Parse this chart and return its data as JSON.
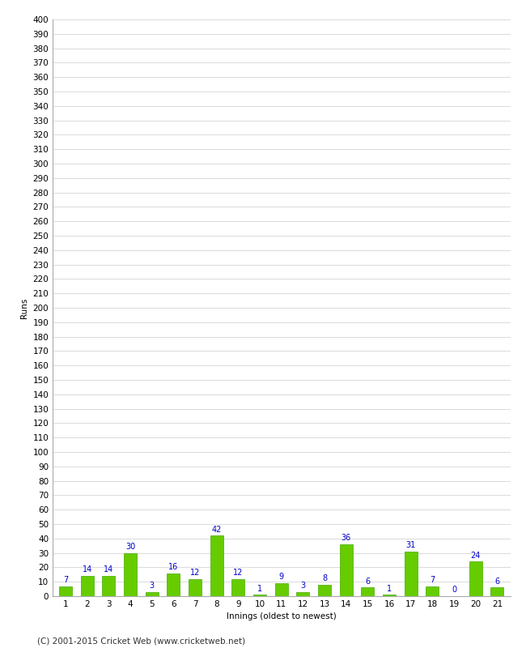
{
  "xlabel": "Innings (oldest to newest)",
  "ylabel": "Runs",
  "categories": [
    1,
    2,
    3,
    4,
    5,
    6,
    7,
    8,
    9,
    10,
    11,
    12,
    13,
    14,
    15,
    16,
    17,
    18,
    19,
    20,
    21
  ],
  "values": [
    7,
    14,
    14,
    30,
    3,
    16,
    12,
    42,
    12,
    1,
    9,
    3,
    8,
    36,
    6,
    1,
    31,
    7,
    0,
    24,
    6
  ],
  "bar_color": "#66cc00",
  "bar_edge_color": "#44aa00",
  "ylim": [
    0,
    400
  ],
  "yticks": [
    0,
    10,
    20,
    30,
    40,
    50,
    60,
    70,
    80,
    90,
    100,
    110,
    120,
    130,
    140,
    150,
    160,
    170,
    180,
    190,
    200,
    210,
    220,
    230,
    240,
    250,
    260,
    270,
    280,
    290,
    300,
    310,
    320,
    330,
    340,
    350,
    360,
    370,
    380,
    390,
    400
  ],
  "grid_color": "#cccccc",
  "background_color": "#ffffff",
  "label_color": "#0000cc",
  "label_fontsize": 7,
  "axis_fontsize": 7.5,
  "footer": "(C) 2001-2015 Cricket Web (www.cricketweb.net)",
  "footer_fontsize": 7.5
}
